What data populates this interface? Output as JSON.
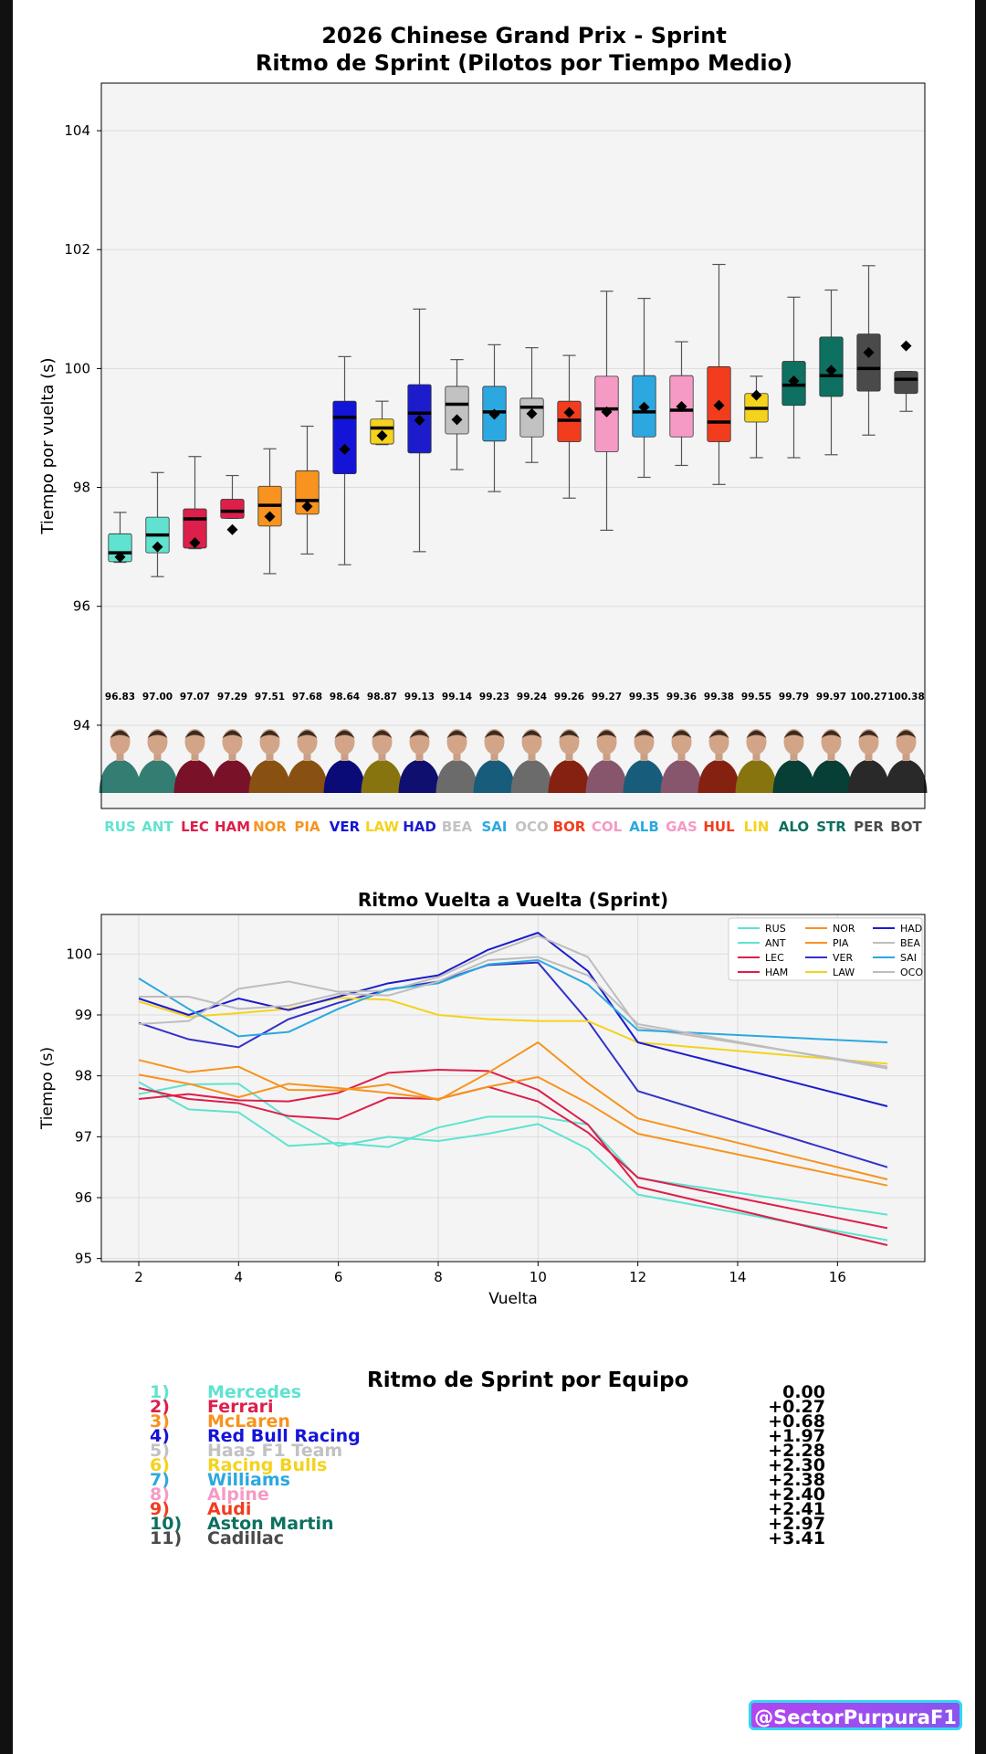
{
  "colors": {
    "background": "#ffffff",
    "plot_bg": "#f4f4f4",
    "frame": "#111111",
    "watermark_border": "#2fd9f2",
    "watermark_bg": "#a04ff0"
  },
  "title": "2026 Chinese Grand Prix - Sprint\nRitmo de Sprint (Pilotos por Tiempo Medio)",
  "chart_data": [
    {
      "type": "box",
      "ylabel": "Tiempo por vuelta (s)",
      "ylim": [
        92.6,
        104.8
      ],
      "yticks": [
        94,
        96,
        98,
        100,
        102,
        104
      ],
      "grid": true,
      "drivers": [
        {
          "code": "RUS",
          "color": "#5fe3d0",
          "mean": 96.83,
          "mean_label": "96.83",
          "whisker_low": 96.74,
          "q1": 96.75,
          "median": 96.9,
          "q3": 97.22,
          "whisker_high": 97.58
        },
        {
          "code": "ANT",
          "color": "#5fe3d0",
          "mean": 97.0,
          "mean_label": "97.00",
          "whisker_low": 96.5,
          "q1": 96.9,
          "median": 97.2,
          "q3": 97.5,
          "whisker_high": 98.25
        },
        {
          "code": "LEC",
          "color": "#dc1f4b",
          "mean": 97.07,
          "mean_label": "97.07",
          "whisker_low": 96.97,
          "q1": 96.98,
          "median": 97.47,
          "q3": 97.64,
          "whisker_high": 98.52
        },
        {
          "code": "HAM",
          "color": "#dc1f4b",
          "mean": 97.29,
          "mean_label": "97.29",
          "whisker_low": 97.48,
          "q1": 97.48,
          "median": 97.6,
          "q3": 97.8,
          "whisker_high": 98.2
        },
        {
          "code": "NOR",
          "color": "#f7931e",
          "mean": 97.51,
          "mean_label": "97.51",
          "whisker_low": 96.55,
          "q1": 97.35,
          "median": 97.7,
          "q3": 98.02,
          "whisker_high": 98.65
        },
        {
          "code": "PIA",
          "color": "#f7931e",
          "mean": 97.68,
          "mean_label": "97.68",
          "whisker_low": 96.88,
          "q1": 97.55,
          "median": 97.78,
          "q3": 98.28,
          "whisker_high": 99.03
        },
        {
          "code": "VER",
          "color": "#1414d9",
          "mean": 98.64,
          "mean_label": "98.64",
          "whisker_low": 96.7,
          "q1": 98.23,
          "median": 99.18,
          "q3": 99.45,
          "whisker_high": 100.2
        },
        {
          "code": "LAW",
          "color": "#f5d21c",
          "mean": 98.87,
          "mean_label": "98.87",
          "whisker_low": 98.72,
          "q1": 98.73,
          "median": 99.0,
          "q3": 99.15,
          "whisker_high": 99.45
        },
        {
          "code": "HAD",
          "color": "#1c1ccc",
          "mean": 99.13,
          "mean_label": "99.13",
          "whisker_low": 96.92,
          "q1": 98.58,
          "median": 99.25,
          "q3": 99.73,
          "whisker_high": 101.0
        },
        {
          "code": "BEA",
          "color": "#c2c2c2",
          "mean": 99.14,
          "mean_label": "99.14",
          "whisker_low": 98.3,
          "q1": 98.9,
          "median": 99.4,
          "q3": 99.7,
          "whisker_high": 100.15
        },
        {
          "code": "SAI",
          "color": "#2ca8e0",
          "mean": 99.23,
          "mean_label": "99.23",
          "whisker_low": 97.93,
          "q1": 98.78,
          "median": 99.27,
          "q3": 99.7,
          "whisker_high": 100.4
        },
        {
          "code": "OCO",
          "color": "#c2c2c2",
          "mean": 99.24,
          "mean_label": "99.24",
          "whisker_low": 98.42,
          "q1": 98.85,
          "median": 99.35,
          "q3": 99.5,
          "whisker_high": 100.35
        },
        {
          "code": "BOR",
          "color": "#f23c1e",
          "mean": 99.26,
          "mean_label": "99.26",
          "whisker_low": 97.82,
          "q1": 98.77,
          "median": 99.13,
          "q3": 99.45,
          "whisker_high": 100.22
        },
        {
          "code": "COL",
          "color": "#f59ac4",
          "mean": 99.27,
          "mean_label": "99.27",
          "whisker_low": 97.28,
          "q1": 98.6,
          "median": 99.32,
          "q3": 99.87,
          "whisker_high": 101.3
        },
        {
          "code": "ALB",
          "color": "#2ca8e0",
          "mean": 99.35,
          "mean_label": "99.35",
          "whisker_low": 98.17,
          "q1": 98.85,
          "median": 99.27,
          "q3": 99.88,
          "whisker_high": 101.18
        },
        {
          "code": "GAS",
          "color": "#f59ac4",
          "mean": 99.36,
          "mean_label": "99.36",
          "whisker_low": 98.37,
          "q1": 98.85,
          "median": 99.3,
          "q3": 99.88,
          "whisker_high": 100.45
        },
        {
          "code": "HUL",
          "color": "#f23c1e",
          "mean": 99.38,
          "mean_label": "99.38",
          "whisker_low": 98.05,
          "q1": 98.77,
          "median": 99.1,
          "q3": 100.03,
          "whisker_high": 101.75
        },
        {
          "code": "LIN",
          "color": "#f5d21c",
          "mean": 99.55,
          "mean_label": "99.55",
          "whisker_low": 98.5,
          "q1": 99.1,
          "median": 99.33,
          "q3": 99.58,
          "whisker_high": 99.87
        },
        {
          "code": "ALO",
          "color": "#0d7060",
          "mean": 99.79,
          "mean_label": "99.79",
          "whisker_low": 98.5,
          "q1": 99.38,
          "median": 99.72,
          "q3": 100.12,
          "whisker_high": 101.2
        },
        {
          "code": "STR",
          "color": "#0d7060",
          "mean": 99.97,
          "mean_label": "99.97",
          "whisker_low": 98.55,
          "q1": 99.53,
          "median": 99.88,
          "q3": 100.53,
          "whisker_high": 101.32
        },
        {
          "code": "PER",
          "color": "#4a4a4a",
          "mean": 100.27,
          "mean_label": "100.27",
          "whisker_low": 98.88,
          "q1": 99.62,
          "median": 100.0,
          "q3": 100.58,
          "whisker_high": 101.73
        },
        {
          "code": "BOT",
          "color": "#4a4a4a",
          "mean": 100.38,
          "mean_label": "100.38",
          "whisker_low": 99.28,
          "q1": 99.58,
          "median": 99.82,
          "q3": 99.95,
          "whisker_high": 99.95
        }
      ]
    },
    {
      "type": "line",
      "title": "Ritmo Vuelta a Vuelta (Sprint)",
      "xlabel": "Vuelta",
      "ylabel": "Tiempo (s)",
      "xlim": [
        1.25,
        17.75
      ],
      "ylim": [
        94.95,
        100.65
      ],
      "xticks": [
        2,
        4,
        6,
        8,
        10,
        12,
        14,
        16
      ],
      "yticks": [
        95,
        96,
        97,
        98,
        99,
        100
      ],
      "grid": true,
      "legend_position": "top-right",
      "x": [
        2,
        3,
        4,
        5,
        6,
        7,
        8,
        9,
        10,
        11,
        12,
        17
      ],
      "series": [
        {
          "name": "RUS",
          "color": "#5fe3d0",
          "values": [
            97.9,
            97.45,
            97.4,
            96.85,
            96.9,
            96.83,
            97.15,
            97.33,
            97.33,
            97.2,
            96.32,
            95.72
          ]
        },
        {
          "name": "ANT",
          "color": "#5fe3d0",
          "values": [
            97.7,
            97.86,
            97.87,
            97.3,
            96.85,
            97.0,
            96.93,
            97.05,
            97.21,
            96.8,
            96.05,
            95.3
          ]
        },
        {
          "name": "LEC",
          "color": "#dc1f4b",
          "values": [
            97.8,
            97.62,
            97.55,
            97.34,
            97.29,
            97.64,
            97.62,
            97.82,
            97.58,
            97.07,
            96.33,
            95.5
          ]
        },
        {
          "name": "HAM",
          "color": "#dc1f4b",
          "values": [
            97.62,
            97.7,
            97.6,
            97.58,
            97.72,
            98.05,
            98.1,
            98.08,
            97.77,
            97.2,
            96.18,
            95.22
          ]
        },
        {
          "name": "NOR",
          "color": "#f7931e",
          "values": [
            98.02,
            97.87,
            97.65,
            97.87,
            97.8,
            97.72,
            97.62,
            97.82,
            97.98,
            97.55,
            97.05,
            96.2
          ]
        },
        {
          "name": "PIA",
          "color": "#f7931e",
          "values": [
            98.26,
            98.06,
            98.15,
            97.77,
            97.76,
            97.86,
            97.6,
            98.05,
            98.55,
            97.88,
            97.3,
            96.3
          ]
        },
        {
          "name": "VER",
          "color": "#3232c8",
          "values": [
            98.87,
            98.6,
            98.47,
            98.93,
            99.2,
            99.42,
            99.55,
            99.82,
            99.86,
            98.9,
            97.75,
            96.5
          ]
        },
        {
          "name": "LAW",
          "color": "#f5d21c",
          "values": [
            99.22,
            98.97,
            99.03,
            99.1,
            99.28,
            99.25,
            99.0,
            98.93,
            98.9,
            98.9,
            98.55,
            98.2
          ]
        },
        {
          "name": "HAD",
          "color": "#1c1ccc",
          "values": [
            99.27,
            99.0,
            99.27,
            99.08,
            99.3,
            99.52,
            99.65,
            100.07,
            100.35,
            99.72,
            98.55,
            97.5
          ]
        },
        {
          "name": "BEA",
          "color": "#bdbdbd",
          "values": [
            98.85,
            98.9,
            99.43,
            99.55,
            99.38,
            99.4,
            99.62,
            100.0,
            100.3,
            99.95,
            98.8,
            98.15
          ]
        },
        {
          "name": "SAI",
          "color": "#2ca8e0",
          "values": [
            99.6,
            99.1,
            98.65,
            98.72,
            99.1,
            99.42,
            99.52,
            99.83,
            99.9,
            99.5,
            98.75,
            98.55
          ]
        },
        {
          "name": "OCO",
          "color": "#bdbdbd",
          "values": [
            99.3,
            99.3,
            99.1,
            99.15,
            99.35,
            99.32,
            99.55,
            99.9,
            99.95,
            99.65,
            98.85,
            98.12
          ]
        }
      ]
    }
  ],
  "team_pace": {
    "title": "Ritmo de Sprint por Equipo",
    "rows": [
      {
        "rank": "1)",
        "team": "Mercedes",
        "delta": "0.00",
        "color": "#5fe3d0"
      },
      {
        "rank": "2)",
        "team": "Ferrari",
        "delta": "+0.27",
        "color": "#dc1f4b"
      },
      {
        "rank": "3)",
        "team": "McLaren",
        "delta": "+0.68",
        "color": "#f7931e"
      },
      {
        "rank": "4)",
        "team": "Red Bull Racing",
        "delta": "+1.97",
        "color": "#1414d9"
      },
      {
        "rank": "5)",
        "team": "Haas F1 Team",
        "delta": "+2.28",
        "color": "#c2c2c2"
      },
      {
        "rank": "6)",
        "team": "Racing Bulls",
        "delta": "+2.30",
        "color": "#f5d21c"
      },
      {
        "rank": "7)",
        "team": "Williams",
        "delta": "+2.38",
        "color": "#2ca8e0"
      },
      {
        "rank": "8)",
        "team": "Alpine",
        "delta": "+2.40",
        "color": "#f59ac4"
      },
      {
        "rank": "9)",
        "team": "Audi",
        "delta": "+2.41",
        "color": "#f23c1e"
      },
      {
        "rank": "10)",
        "team": "Aston Martin",
        "delta": "+2.97",
        "color": "#0d7060"
      },
      {
        "rank": "11)",
        "team": "Cadillac",
        "delta": "+3.41",
        "color": "#4a4a4a"
      }
    ]
  },
  "watermark": "@SectorPurpuraF1"
}
